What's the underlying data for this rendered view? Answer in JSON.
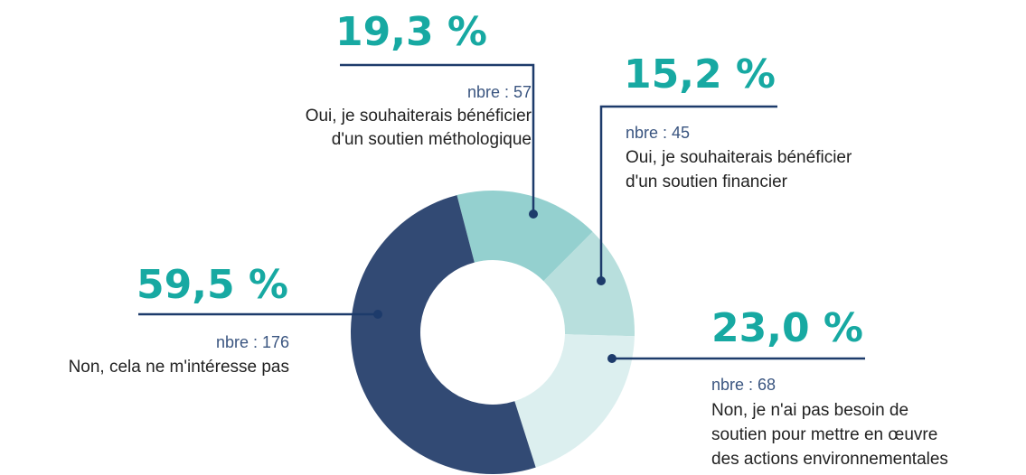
{
  "chart_data": {
    "type": "donut",
    "categories": [
      [
        "Oui, je souhaiterais bénéficier",
        "d'un soutien méthologique"
      ],
      [
        "Oui, je souhaiterais bénéficier",
        "d'un soutien financier"
      ],
      [
        "Non, je n'ai pas besoin de",
        "soutien pour mettre en œuvre",
        "des actions environnementales"
      ],
      [
        "Non, cela ne m'intéresse pas"
      ]
    ],
    "values": [
      19.3,
      15.2,
      23.0,
      59.5
    ],
    "value_labels": [
      "19,3 %",
      "15,2 %",
      "23,0 %",
      "59,5 %"
    ],
    "counts": [
      57,
      45,
      68,
      176
    ],
    "count_labels": [
      "nbre : 57",
      "nbre : 45",
      "nbre : 68",
      "nbre : 176"
    ],
    "colors": [
      "#94d0cf",
      "#b8dfdd",
      "#dcefef",
      "#324a74"
    ]
  }
}
